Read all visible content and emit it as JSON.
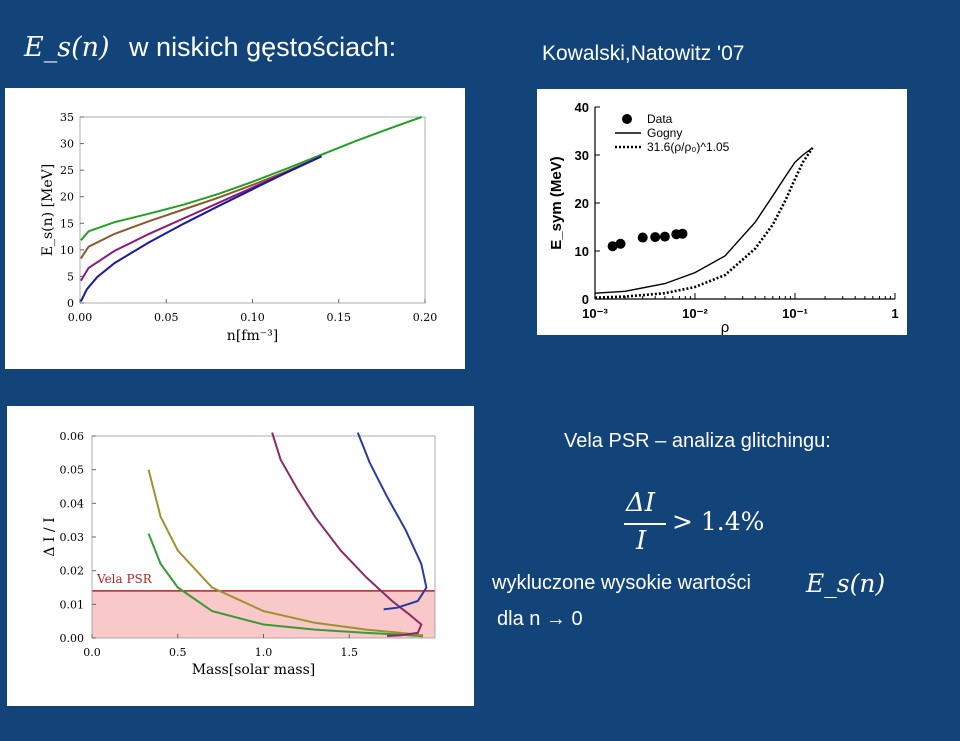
{
  "slide": {
    "title_math": "E_s(n)",
    "title_text": "w niskich gęstościach:",
    "citation": "Kowalski,Natowitz '07",
    "vela_heading": "Vela PSR – analiza  glitchingu:",
    "formula_numer": "ΔI",
    "formula_denom": "I",
    "formula_rhs": "> 1.4%",
    "excluded_text": "wykluczone  wysokie wartości",
    "excluded_math": "E_s(n)",
    "limit_text": "dla n → 0"
  },
  "chart_data": [
    {
      "type": "line",
      "xlabel": "n[fm⁻³]",
      "ylabel": "E_s(n) [MeV]",
      "xlim": [
        0,
        0.2
      ],
      "ylim": [
        0,
        35
      ],
      "xticks": [
        "0.00",
        "0.05",
        "0.10",
        "0.15",
        "0.20"
      ],
      "yticks": [
        "0",
        "5",
        "10",
        "15",
        "20",
        "25",
        "30",
        "35"
      ],
      "series": [
        {
          "color": "#22a022",
          "x": [
            0.0005,
            0.005,
            0.02,
            0.04,
            0.06,
            0.08,
            0.1,
            0.12,
            0.14,
            0.16,
            0.18,
            0.198
          ],
          "y": [
            11.8,
            13.5,
            15.2,
            16.8,
            18.5,
            20.5,
            22.8,
            25.3,
            27.9,
            30.5,
            32.9,
            35.0
          ]
        },
        {
          "color": "#8b5a2b",
          "x": [
            0.0005,
            0.005,
            0.02,
            0.04,
            0.06,
            0.08,
            0.1,
            0.12,
            0.14
          ],
          "y": [
            8.4,
            10.6,
            13.0,
            15.4,
            17.6,
            19.8,
            22.2,
            24.8,
            27.6
          ]
        },
        {
          "color": "#8b1a7a",
          "x": [
            0.0005,
            0.005,
            0.02,
            0.04,
            0.06,
            0.08,
            0.1,
            0.12,
            0.14
          ],
          "y": [
            4.2,
            6.6,
            9.8,
            13.0,
            15.9,
            18.8,
            21.7,
            24.6,
            27.6
          ]
        },
        {
          "color": "#1a1aa0",
          "x": [
            0.0005,
            0.004,
            0.01,
            0.02,
            0.04,
            0.06,
            0.08,
            0.1,
            0.12,
            0.14
          ],
          "y": [
            0.3,
            2.6,
            4.9,
            7.5,
            11.4,
            14.9,
            18.2,
            21.4,
            24.6,
            27.6
          ]
        }
      ]
    },
    {
      "type": "line",
      "xscale": "log",
      "xlabel": "ρ",
      "ylabel": "E_sym (MeV)",
      "xlim": [
        0.001,
        1
      ],
      "ylim": [
        0,
        40
      ],
      "xticks": [
        "10⁻³",
        "10⁻²",
        "10⁻¹",
        "1"
      ],
      "yticks": [
        "0",
        "10",
        "20",
        "30",
        "40"
      ],
      "legend_position": "top-left",
      "legend": [
        {
          "name": "Data",
          "style": "dot"
        },
        {
          "name": "Gogny",
          "style": "solid"
        },
        {
          "name": "31.6(ρ/ρ₀)^1.05",
          "style": "dotted"
        }
      ],
      "data_points": {
        "x": [
          0.0015,
          0.0018,
          0.003,
          0.004,
          0.005,
          0.0065,
          0.0075
        ],
        "y": [
          11.0,
          11.5,
          12.8,
          12.9,
          13.0,
          13.5,
          13.6
        ]
      },
      "gogny": {
        "x": [
          0.001,
          0.002,
          0.005,
          0.01,
          0.02,
          0.04,
          0.06,
          0.08,
          0.1,
          0.12,
          0.15
        ],
        "y": [
          1.2,
          1.6,
          3.2,
          5.5,
          9.0,
          16.0,
          21.5,
          25.5,
          28.5,
          30.0,
          31.5
        ]
      },
      "power_law": {
        "x": [
          0.001,
          0.002,
          0.005,
          0.01,
          0.02,
          0.04,
          0.06,
          0.08,
          0.1,
          0.12,
          0.15
        ],
        "y": [
          0.3,
          0.5,
          1.2,
          2.5,
          5.0,
          10.5,
          15.5,
          20.5,
          25.0,
          28.5,
          31.5
        ]
      }
    },
    {
      "type": "line",
      "xlabel": "Mass[solar mass]",
      "ylabel": "Δ I / I",
      "xlim": [
        0,
        2
      ],
      "ylim": [
        0,
        0.06
      ],
      "xticks": [
        "0.0",
        "0.5",
        "1.0",
        "1.5"
      ],
      "yticks": [
        "0.00",
        "0.01",
        "0.02",
        "0.03",
        "0.04",
        "0.05",
        "0.06"
      ],
      "band": {
        "label": "Vela PSR",
        "y_min": 0,
        "y_max": 0.014,
        "color": "#f9c8c8",
        "line_color": "#b22222"
      },
      "series": [
        {
          "color": "#3a9a3a",
          "x": [
            0.33,
            0.4,
            0.5,
            0.7,
            1.0,
            1.3,
            1.6,
            1.8,
            1.93
          ],
          "y": [
            0.031,
            0.022,
            0.015,
            0.008,
            0.004,
            0.0025,
            0.0015,
            0.001,
            0.0005
          ]
        },
        {
          "color": "#a09030",
          "x": [
            0.33,
            0.4,
            0.5,
            0.7,
            1.0,
            1.3,
            1.6,
            1.8,
            1.93
          ],
          "y": [
            0.05,
            0.036,
            0.026,
            0.015,
            0.008,
            0.0045,
            0.0025,
            0.0015,
            0.0008
          ]
        },
        {
          "color": "#8b2a6a",
          "x": [
            1.05,
            1.1,
            1.2,
            1.3,
            1.45,
            1.6,
            1.75,
            1.85,
            1.92,
            1.9,
            1.8,
            1.72
          ],
          "y": [
            0.061,
            0.053,
            0.044,
            0.036,
            0.026,
            0.018,
            0.011,
            0.007,
            0.004,
            0.0015,
            0.0008,
            0.0006
          ]
        },
        {
          "color": "#2a3aa0",
          "x": [
            1.55,
            1.62,
            1.72,
            1.83,
            1.92,
            1.95,
            1.9,
            1.78,
            1.7
          ],
          "y": [
            0.061,
            0.052,
            0.042,
            0.032,
            0.022,
            0.015,
            0.011,
            0.009,
            0.0085
          ]
        }
      ]
    }
  ]
}
